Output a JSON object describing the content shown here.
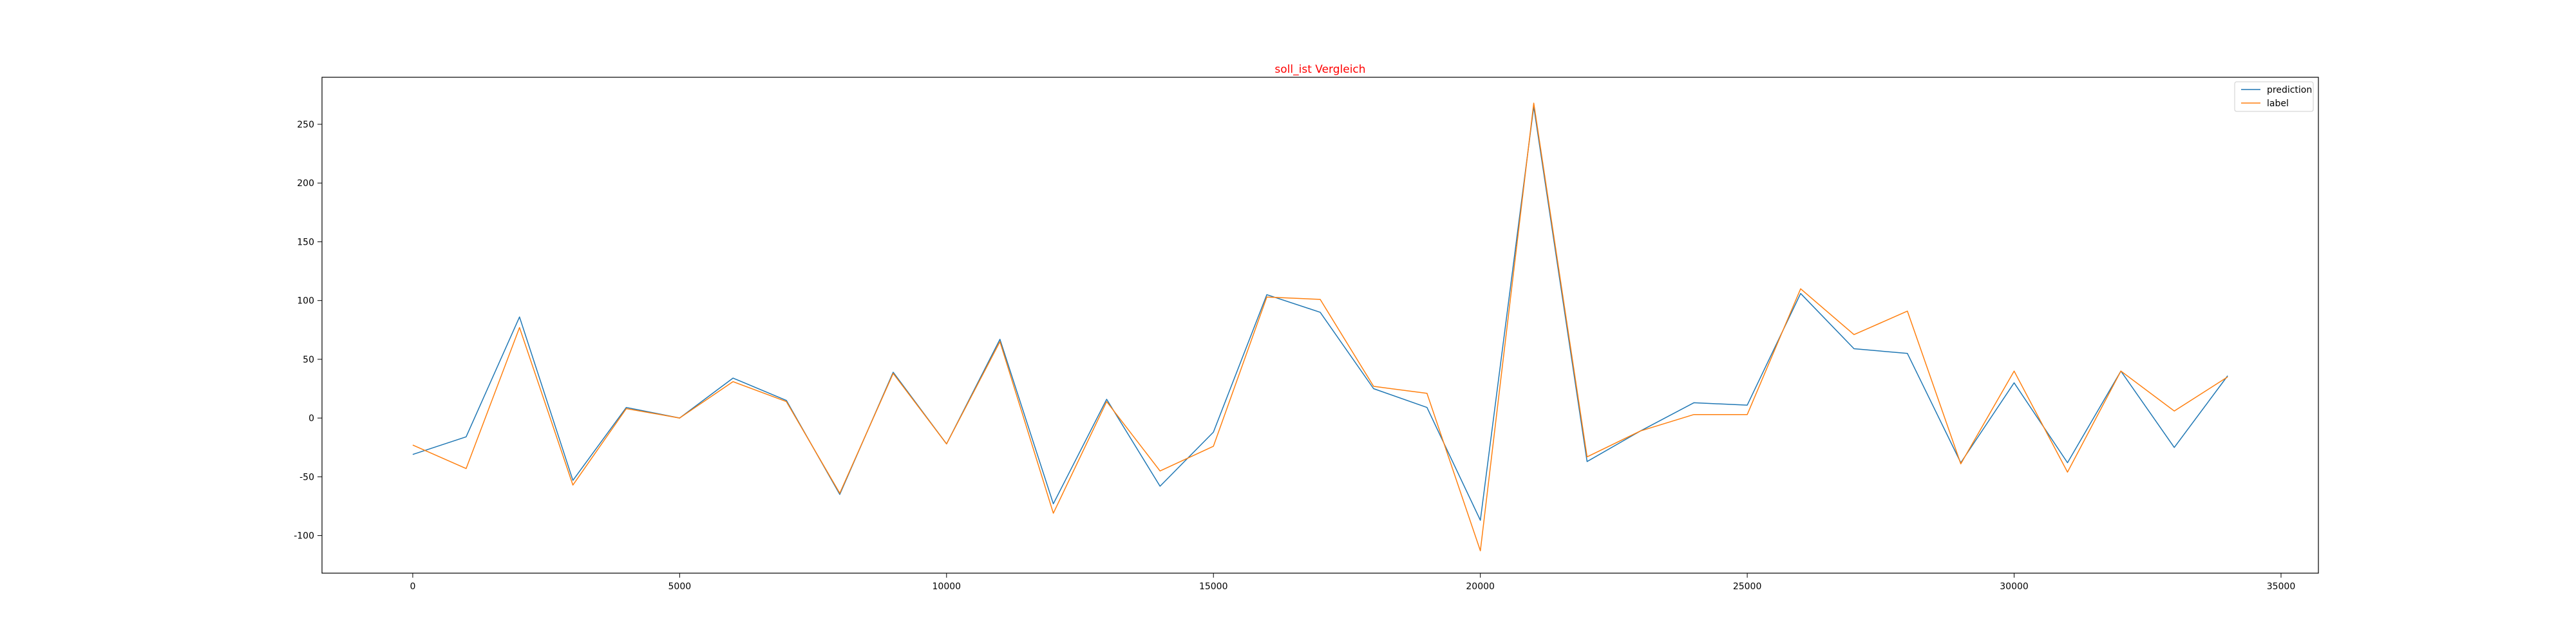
{
  "chart_data": {
    "type": "line",
    "title": "soll_ist Vergleich",
    "title_color": "#ff0000",
    "xlabel": "",
    "ylabel": "",
    "xlim": [
      -1700,
      35700
    ],
    "ylim": [
      -132,
      290
    ],
    "x_ticks": [
      0,
      5000,
      10000,
      15000,
      20000,
      25000,
      30000,
      35000
    ],
    "y_ticks": [
      -100,
      -50,
      0,
      50,
      100,
      150,
      200,
      250
    ],
    "grid": false,
    "legend_position": "top-right",
    "x": [
      0,
      1000,
      2000,
      3000,
      4000,
      5000,
      6000,
      7000,
      8000,
      9000,
      10000,
      11000,
      12000,
      13000,
      14000,
      15000,
      16000,
      17000,
      18000,
      19000,
      20000,
      21000,
      22000,
      23000,
      24000,
      25000,
      26000,
      27000,
      28000,
      29000,
      30000,
      31000,
      32000,
      33000,
      34000
    ],
    "series": [
      {
        "name": "prediction",
        "color": "#1f77b4",
        "values": [
          -31,
          -16,
          86,
          -53,
          9,
          0,
          34,
          15,
          -65,
          39,
          -22,
          67,
          -73,
          16,
          -58,
          -12,
          105,
          90,
          25,
          9,
          -87,
          265,
          -37,
          -11,
          13,
          11,
          106,
          59,
          55,
          -38,
          30,
          -38,
          40,
          -25,
          36
        ]
      },
      {
        "name": "label",
        "color": "#ff7f0e",
        "values": [
          -23,
          -43,
          77,
          -57,
          8,
          0,
          31,
          14,
          -64,
          38,
          -22,
          65,
          -81,
          14,
          -45,
          -24,
          103,
          101,
          27,
          21,
          -113,
          268,
          -33,
          -11,
          3,
          3,
          110,
          71,
          91,
          -39,
          40,
          -46,
          40,
          6,
          35
        ]
      }
    ]
  }
}
